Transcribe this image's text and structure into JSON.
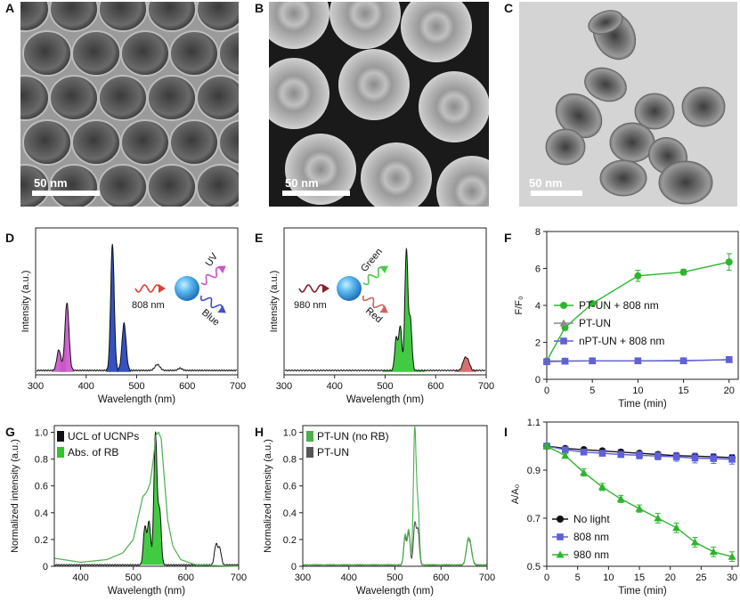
{
  "panels": {
    "A": {
      "letter": "A",
      "scale_label": "50 nm"
    },
    "B": {
      "letter": "B",
      "scale_label": "50 nm"
    },
    "C": {
      "letter": "C",
      "scale_label": "50 nm"
    }
  },
  "chart_data": [
    {
      "id": "D",
      "letter": "D",
      "type": "line",
      "xlabel": "Wavelength (nm)",
      "ylabel": "Intensity (a.u.)",
      "xlim": [
        300,
        700
      ],
      "ylim": [
        0,
        1
      ],
      "xticks": [
        "300",
        "400",
        "500",
        "600",
        "700"
      ],
      "grid": false,
      "inset": {
        "excitation": "808 nm",
        "emissions": [
          "UV",
          "Blue"
        ]
      },
      "peaks": [
        {
          "center": 346,
          "height": 0.14,
          "width": 4,
          "color": "#c857c8"
        },
        {
          "center": 362,
          "height": 0.46,
          "width": 4,
          "color": "#c857c8"
        },
        {
          "center": 452,
          "height": 0.86,
          "width": 3.5,
          "color": "#1f3fb8"
        },
        {
          "center": 475,
          "height": 0.32,
          "width": 4,
          "color": "#1f3fb8"
        },
        {
          "center": 541,
          "height": 0.04,
          "width": 5,
          "color": "none"
        },
        {
          "center": 586,
          "height": 0.015,
          "width": 4,
          "color": "none"
        }
      ]
    },
    {
      "id": "E",
      "letter": "E",
      "type": "line",
      "xlabel": "Wavelength (nm)",
      "ylabel": "Intensity (a.u.)",
      "xlim": [
        300,
        700
      ],
      "ylim": [
        0,
        1
      ],
      "xticks": [
        "300",
        "400",
        "500",
        "600",
        "700"
      ],
      "grid": false,
      "inset": {
        "excitation": "980 nm",
        "emissions": [
          "Green",
          "Red"
        ]
      },
      "peaks": [
        {
          "center": 522,
          "height": 0.22,
          "width": 3,
          "color": "#2ec52e"
        },
        {
          "center": 530,
          "height": 0.3,
          "width": 3,
          "color": "#2ec52e"
        },
        {
          "center": 542,
          "height": 0.82,
          "width": 3,
          "color": "#2ec52e"
        },
        {
          "center": 550,
          "height": 0.34,
          "width": 3,
          "color": "#2ec52e"
        },
        {
          "center": 657,
          "height": 0.07,
          "width": 4,
          "color": "#d46060"
        },
        {
          "center": 664,
          "height": 0.06,
          "width": 4,
          "color": "#d46060"
        }
      ]
    },
    {
      "id": "F",
      "letter": "F",
      "type": "line",
      "xlabel": "Time (min)",
      "ylabel": "F/F₀",
      "xlim": [
        0,
        21
      ],
      "ylim": [
        0,
        8
      ],
      "xticks": [
        0,
        5,
        10,
        15,
        20
      ],
      "yticks": [
        0,
        2,
        4,
        6,
        8
      ],
      "legend_position": "middle-right",
      "series": [
        {
          "name": "PT-UN + 808 nm",
          "color": "#2db52d",
          "marker": "circle",
          "x": [
            0,
            2,
            5,
            10,
            15,
            20
          ],
          "y": [
            1.0,
            2.8,
            4.1,
            5.6,
            5.8,
            6.35
          ],
          "err": [
            0.05,
            0.15,
            0.12,
            0.3,
            0.15,
            0.45
          ]
        },
        {
          "name": "PT-UN",
          "color": "#8a8a8a",
          "marker": "triangle",
          "x": [
            0,
            2,
            5,
            10,
            15,
            20
          ],
          "y": [
            1.0,
            1.0,
            1.0,
            1.0,
            1.02,
            1.05
          ],
          "err": [
            0.03,
            0.03,
            0.03,
            0.03,
            0.03,
            0.03
          ]
        },
        {
          "name": "nPT-UN + 808 nm",
          "color": "#6060d8",
          "marker": "square",
          "x": [
            0,
            2,
            5,
            10,
            15,
            20
          ],
          "y": [
            0.95,
            0.98,
            1.0,
            1.0,
            1.0,
            1.07
          ],
          "err": [
            0.03,
            0.03,
            0.03,
            0.03,
            0.03,
            0.03
          ]
        }
      ]
    },
    {
      "id": "G",
      "letter": "G",
      "type": "line",
      "xlabel": "Wavelength (nm)",
      "ylabel": "Normalized intensity (a.u.)",
      "xlim": [
        350,
        700
      ],
      "ylim": [
        0,
        1.05
      ],
      "xticks": [
        "400",
        "500",
        "600",
        "700"
      ],
      "yticks": [
        "0",
        "0.2",
        "0.4",
        "0.6",
        "0.8",
        "1.0"
      ],
      "legend_position": "top-left",
      "series": [
        {
          "name": "UCL of UCNPs",
          "color": "#111111",
          "fill": "#2ec52e",
          "peaks": [
            [
              522,
              0.28,
              3
            ],
            [
              530,
              0.32,
              3
            ],
            [
              542,
              0.98,
              3
            ],
            [
              550,
              0.4,
              3
            ],
            [
              657,
              0.15,
              3
            ],
            [
              664,
              0.12,
              3
            ]
          ]
        },
        {
          "name": "Abs. of RB",
          "color": "#4caf4c",
          "curve": [
            [
              350,
              0.06
            ],
            [
              400,
              0.03
            ],
            [
              450,
              0.05
            ],
            [
              480,
              0.1
            ],
            [
              500,
              0.2
            ],
            [
              510,
              0.38
            ],
            [
              518,
              0.52
            ],
            [
              525,
              0.55
            ],
            [
              532,
              0.62
            ],
            [
              538,
              0.8
            ],
            [
              543,
              0.98
            ],
            [
              548,
              1.0
            ],
            [
              553,
              0.95
            ],
            [
              558,
              0.7
            ],
            [
              565,
              0.35
            ],
            [
              575,
              0.15
            ],
            [
              590,
              0.05
            ],
            [
              620,
              0.01
            ],
            [
              700,
              0.0
            ]
          ]
        }
      ]
    },
    {
      "id": "H",
      "letter": "H",
      "type": "line",
      "xlabel": "Wavelength (nm)",
      "ylabel": "Normalized intensity (a.u.)",
      "xlim": [
        300,
        700
      ],
      "ylim": [
        0,
        1.05
      ],
      "xticks": [
        "300",
        "400",
        "500",
        "600",
        "700"
      ],
      "yticks": [
        "0",
        "0.2",
        "0.4",
        "0.6",
        "0.8",
        "1.0"
      ],
      "legend_position": "top-left",
      "series": [
        {
          "name": "PT-UN (no RB)",
          "color": "#4caf4c",
          "peaks": [
            [
              522,
              0.22,
              3
            ],
            [
              530,
              0.26,
              3
            ],
            [
              543,
              1.0,
              3
            ],
            [
              550,
              0.42,
              3
            ],
            [
              658,
              0.15,
              4
            ],
            [
              664,
              0.12,
              4
            ]
          ]
        },
        {
          "name": "PT-UN",
          "color": "#555555",
          "peaks": [
            [
              522,
              0.2,
              3
            ],
            [
              530,
              0.24,
              3
            ],
            [
              543,
              0.3,
              3
            ],
            [
              550,
              0.25,
              3
            ],
            [
              658,
              0.14,
              4
            ],
            [
              664,
              0.11,
              4
            ]
          ]
        }
      ]
    },
    {
      "id": "I",
      "letter": "I",
      "type": "line",
      "xlabel": "Time (min)",
      "ylabel": "A/A₀",
      "xlim": [
        0,
        31
      ],
      "ylim": [
        0.5,
        1.1
      ],
      "xticks": [
        0,
        5,
        10,
        15,
        20,
        25,
        30
      ],
      "yticks": [
        "0.5",
        "0.7",
        "0.9",
        "1.1"
      ],
      "legend_position": "bottom-left",
      "series": [
        {
          "name": "No light",
          "color": "#111111",
          "marker": "circle",
          "x": [
            0,
            3,
            6,
            9,
            12,
            15,
            18,
            21,
            24,
            27,
            30
          ],
          "y": [
            1.0,
            0.99,
            0.985,
            0.98,
            0.975,
            0.97,
            0.965,
            0.96,
            0.958,
            0.955,
            0.952
          ],
          "err": [
            0.005,
            0.005,
            0.008,
            0.008,
            0.01,
            0.01,
            0.01,
            0.01,
            0.012,
            0.012,
            0.012
          ]
        },
        {
          "name": "808 nm",
          "color": "#6060d8",
          "marker": "square",
          "x": [
            0,
            3,
            6,
            9,
            12,
            15,
            18,
            21,
            24,
            27,
            30
          ],
          "y": [
            1.0,
            0.985,
            0.975,
            0.97,
            0.965,
            0.962,
            0.958,
            0.955,
            0.95,
            0.948,
            0.945
          ],
          "err": [
            0.005,
            0.008,
            0.01,
            0.01,
            0.012,
            0.015,
            0.015,
            0.018,
            0.02,
            0.02,
            0.02
          ]
        },
        {
          "name": "980 nm",
          "color": "#2db52d",
          "marker": "triangle",
          "x": [
            0,
            3,
            6,
            9,
            12,
            15,
            18,
            21,
            24,
            27,
            30
          ],
          "y": [
            1.0,
            0.96,
            0.89,
            0.83,
            0.78,
            0.74,
            0.7,
            0.66,
            0.6,
            0.56,
            0.54
          ],
          "err": [
            0.005,
            0.01,
            0.015,
            0.015,
            0.015,
            0.015,
            0.02,
            0.02,
            0.02,
            0.02,
            0.02
          ]
        }
      ]
    }
  ]
}
